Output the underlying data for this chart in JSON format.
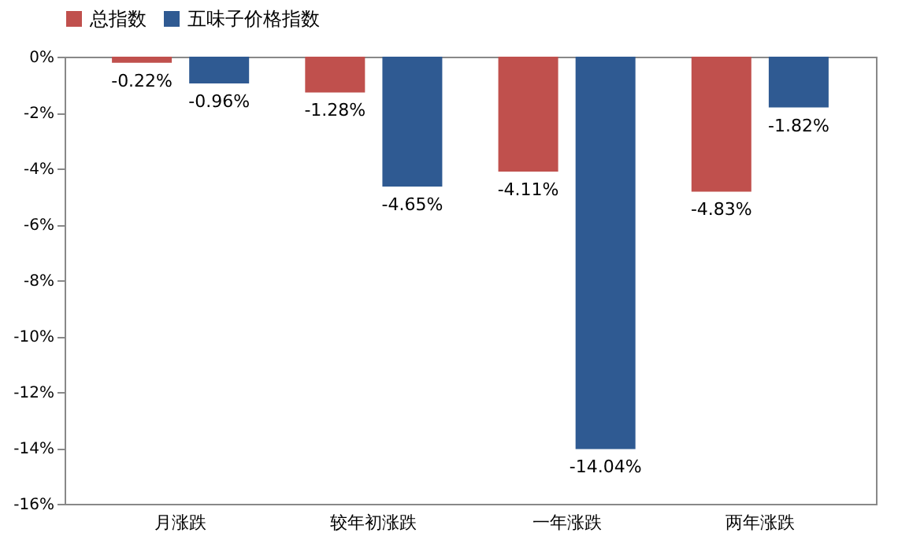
{
  "chart_data": {
    "type": "bar",
    "categories": [
      "月涨跌",
      "较年初涨跌",
      "一年涨跌",
      "两年涨跌"
    ],
    "series": [
      {
        "name": "总指数",
        "color": "#c0504d",
        "values": [
          -0.22,
          -1.28,
          -4.11,
          -4.83
        ],
        "value_labels": [
          "-0.22%",
          "-1.28%",
          "-4.11%",
          "-4.83%"
        ]
      },
      {
        "name": "五味子价格指数",
        "color": "#2f5a92",
        "values": [
          -0.96,
          -4.65,
          -14.04,
          -1.82
        ],
        "value_labels": [
          "-0.96%",
          "-4.65%",
          "-14.04%",
          "-1.82%"
        ]
      }
    ],
    "ylim": [
      -16,
      0
    ],
    "yticks": [
      {
        "value": 0,
        "label": "0%"
      },
      {
        "value": -2,
        "label": "-2%"
      },
      {
        "value": -4,
        "label": "-4%"
      },
      {
        "value": -6,
        "label": "-6%"
      },
      {
        "value": -8,
        "label": "-8%"
      },
      {
        "value": -10,
        "label": "-10%"
      },
      {
        "value": -12,
        "label": "-12%"
      },
      {
        "value": -14,
        "label": "-14%"
      },
      {
        "value": -16,
        "label": "-16%"
      }
    ],
    "grid": false,
    "legend": "top"
  }
}
